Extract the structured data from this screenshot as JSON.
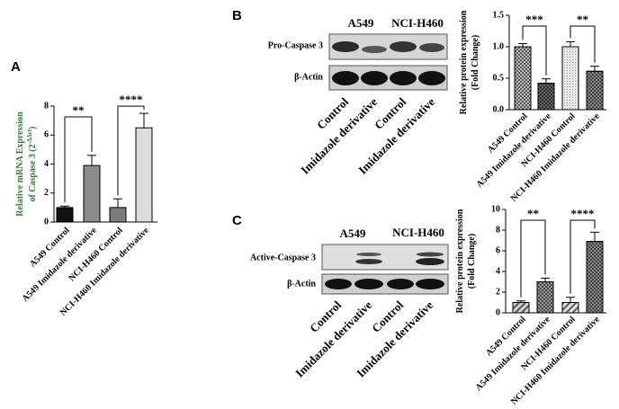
{
  "panels": [
    "A",
    "B",
    "C"
  ],
  "blots": [
    {
      "header": [
        "A549",
        "NCI-H460"
      ],
      "rows": [
        "Pro-Caspase 3",
        "β-Actin"
      ],
      "lanes": [
        "Control",
        "Imidazole derivative",
        "Control",
        "Imidazole derivative"
      ]
    },
    {
      "header": [
        "A549",
        "NCI-H460"
      ],
      "rows": [
        "Active-Caspase 3",
        "β-Actin"
      ],
      "lanes": [
        "Control",
        "Imidazole derivative",
        "Control",
        "Imidazole derivative"
      ]
    }
  ],
  "chart_data": [
    {
      "type": "bar",
      "ylabel": [
        "Relative mRNA Expression",
        "of Caspase 3 (2"
      ],
      "ylabel_sup": "-ΔΔct",
      "ylabel_end": ")",
      "categories": [
        "A549 Control",
        "A549 Imidazole derivative",
        "NCI-H460 Control",
        "NCI-H460 Imidazole derivative"
      ],
      "values": [
        1.0,
        3.9,
        1.0,
        6.5
      ],
      "errors": [
        0.1,
        0.7,
        0.6,
        1.0
      ],
      "colors": [
        "#111111",
        "#8c8c8c",
        "#7a7a7a",
        "#dcdcdc"
      ],
      "annotations": [
        "**",
        "****"
      ],
      "ylim": [
        0,
        8
      ],
      "yticks": [
        0,
        2,
        4,
        6,
        8
      ]
    },
    {
      "type": "bar",
      "ylabel": [
        "Relative protein expression",
        "(Fold Change)"
      ],
      "categories": [
        "A549 Control",
        "A549 Imidazole derivative",
        "NCI-H460 Control",
        "NCI-H460 Imidazole derivative"
      ],
      "values": [
        1.0,
        0.42,
        1.0,
        0.61
      ],
      "errors": [
        0.05,
        0.07,
        0.08,
        0.08
      ],
      "colors": [
        "#bdbdbd",
        "#666666",
        "#e8e8e8",
        "#8a8a8a"
      ],
      "annotations": [
        "***",
        "**"
      ],
      "ylim": [
        0,
        1.5
      ],
      "yticks": [
        {
          "value": 0,
          "label": "0.0"
        },
        {
          "value": 0.5,
          "label": "0.5"
        },
        {
          "value": 1,
          "label": "1.0"
        },
        {
          "value": 1.5,
          "label": "1.5"
        }
      ]
    },
    {
      "type": "bar",
      "ylabel": [
        "Relative protein expression",
        "(Fold Change)"
      ],
      "categories": [
        "A549 Control",
        "A549 Imidazole derivative",
        "NCI-H460 Control",
        "NCI-H460 Imidazole derivative"
      ],
      "values": [
        1.0,
        3.0,
        1.0,
        6.9
      ],
      "errors": [
        0.15,
        0.35,
        0.5,
        0.9
      ],
      "colors": [
        "#d0d0d0",
        "#9a9a9a",
        "#e0e0e0",
        "#8a8a8a"
      ],
      "annotations": [
        "**",
        "****"
      ],
      "ylim": [
        0,
        10
      ],
      "yticks": [
        0,
        2,
        4,
        6,
        8,
        10
      ]
    }
  ]
}
